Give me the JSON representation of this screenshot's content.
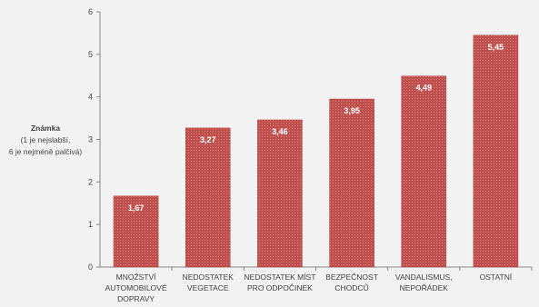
{
  "chart_data": {
    "type": "bar",
    "categories": [
      [
        "MNOŽSTVÍ",
        "AUTOMOBILOVÉ",
        "DOPRAVY"
      ],
      [
        "NEDOSTATEK",
        "VEGETACE"
      ],
      [
        "NEDOSTATEK MÍST",
        "PRO ODPOČINEK"
      ],
      [
        "BEZPEČNOST",
        "CHODCŮ"
      ],
      [
        "VANDALISMUS,",
        "NEPOŘÁDEK"
      ],
      [
        "OSTATNÍ"
      ]
    ],
    "values": [
      1.67,
      3.27,
      3.46,
      3.95,
      4.49,
      5.45
    ],
    "data_labels": [
      "1,67",
      "3,27",
      "3,46",
      "3,95",
      "4,49",
      "5,45"
    ],
    "ylabel": {
      "title": "Známka",
      "lines": [
        "(1 je nejslabší,",
        "6 je nejméně palčivá)"
      ]
    },
    "ylim": [
      0,
      6
    ],
    "yticks": [
      "0",
      "1",
      "2",
      "3",
      "4",
      "5",
      "6"
    ],
    "grid": false,
    "legend": "none",
    "bar_color": "#c0504d",
    "bar_hatch_color": "#d9807e"
  }
}
